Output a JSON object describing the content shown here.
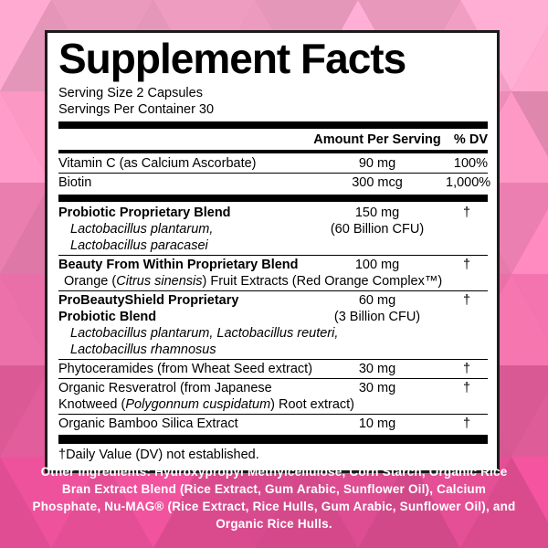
{
  "page": {
    "background_top_color": "#f9abcc",
    "background_bottom_color": "#e0458f",
    "card_border_color": "#1b1b1b",
    "footer_text_color": "#ffffff"
  },
  "label": {
    "title": "Supplement Facts",
    "serving_size": "Serving Size 2 Capsules",
    "servings_per_container": "Servings Per Container 30",
    "amount_header": "Amount Per Serving",
    "dv_header": "% DV",
    "rows": [
      {
        "sepBefore": null,
        "lines": [
          {
            "left": [
              {
                "t": "Vitamin C (as Calcium Ascorbate)",
                "s": "r"
              }
            ],
            "amount": "90 mg",
            "dv": "100%"
          }
        ]
      },
      {
        "sepBefore": "thin",
        "lines": [
          {
            "left": [
              {
                "t": "Biotin",
                "s": "r"
              }
            ],
            "amount": "300 mcg",
            "dv": "1,000%"
          }
        ]
      },
      {
        "sepBefore": "thick",
        "lines": [
          {
            "left": [
              {
                "t": "Probiotic Proprietary Blend",
                "s": "b"
              }
            ],
            "amount": "150 mg",
            "dv": "†"
          },
          {
            "left": [
              {
                "t": "Lactobacillus plantarum,",
                "s": "i"
              }
            ],
            "indent": "big",
            "amount": "(60 Billion CFU)"
          },
          {
            "left": [
              {
                "t": "Lactobacillus paracasei",
                "s": "i"
              }
            ],
            "indent": "big"
          }
        ]
      },
      {
        "sepBefore": "thin",
        "lines": [
          {
            "left": [
              {
                "t": "Beauty From Within Proprietary Blend",
                "s": "b"
              }
            ],
            "amount": "100 mg",
            "dv": "†"
          },
          {
            "left": [
              {
                "t": "Orange (",
                "s": "r"
              },
              {
                "t": "Citrus sinensis",
                "s": "i"
              },
              {
                "t": ") Fruit Extracts (Red Orange Complex™)",
                "s": "r"
              }
            ],
            "indent": "small"
          }
        ]
      },
      {
        "sepBefore": "thin",
        "lines": [
          {
            "left": [
              {
                "t": "ProBeautyShield Proprietary",
                "s": "b"
              }
            ],
            "amount": "60 mg",
            "dv": "†"
          },
          {
            "left": [
              {
                "t": "Probiotic Blend",
                "s": "b"
              }
            ],
            "amount": "(3 Billion CFU)"
          },
          {
            "left": [
              {
                "t": "Lactobacillus plantarum, Lactobacillus reuteri,",
                "s": "i"
              }
            ],
            "indent": "big"
          },
          {
            "left": [
              {
                "t": "Lactobacillus rhamnosus",
                "s": "i"
              }
            ],
            "indent": "big"
          }
        ]
      },
      {
        "sepBefore": "thin",
        "lines": [
          {
            "left": [
              {
                "t": "Phytoceramides (from Wheat Seed extract)",
                "s": "r"
              }
            ],
            "amount": "30 mg",
            "dv": "†"
          }
        ]
      },
      {
        "sepBefore": "thin",
        "lines": [
          {
            "left": [
              {
                "t": "Organic Resveratrol (from Japanese",
                "s": "r"
              }
            ],
            "amount": "30 mg",
            "dv": "†"
          },
          {
            "left": [
              {
                "t": "Knotweed (",
                "s": "r"
              },
              {
                "t": "Polygonnum cuspidatum",
                "s": "i"
              },
              {
                "t": ") Root extract)",
                "s": "r"
              }
            ]
          }
        ]
      },
      {
        "sepBefore": "thin",
        "lines": [
          {
            "left": [
              {
                "t": "Organic Bamboo Silica Extract",
                "s": "r"
              }
            ],
            "amount": "10 mg",
            "dv": "†"
          }
        ]
      }
    ],
    "footnote": "†Daily Value (DV) not established."
  },
  "footer": {
    "other_ingredients": "Other Ingredients: Hydroxypropyl Methylcellulose, Corn Starch, Organic Rice Bran Extract Blend (Rice Extract, Gum Arabic, Sunflower Oil), Calcium Phosphate, Nu-MAG® (Rice Extract, Rice Hulls, Gum Arabic, Sunflower Oil), and Organic Rice Hulls."
  }
}
